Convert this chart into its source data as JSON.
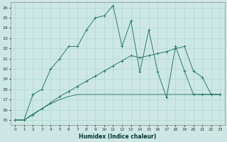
{
  "xlabel": "Humidex (Indice chaleur)",
  "bg_color": "#cde8e4",
  "line_color": "#2d7a6e",
  "grid_color": "#b0d8d2",
  "xlim": [
    -0.5,
    23.5
  ],
  "ylim": [
    14.5,
    26.5
  ],
  "xticks": [
    0,
    1,
    2,
    3,
    4,
    5,
    6,
    7,
    8,
    9,
    10,
    11,
    12,
    13,
    14,
    15,
    16,
    17,
    18,
    19,
    20,
    21,
    22,
    23
  ],
  "yticks": [
    15,
    16,
    17,
    18,
    19,
    20,
    21,
    22,
    23,
    24,
    25,
    26
  ],
  "series1_x": [
    0,
    1,
    2,
    3,
    4,
    5,
    6,
    7,
    8,
    9,
    10,
    11,
    12,
    13,
    14,
    15,
    16,
    17,
    18,
    19,
    20,
    21,
    22,
    23
  ],
  "series1_y": [
    15,
    15,
    17.5,
    18,
    20,
    21,
    22.2,
    22.2,
    23.8,
    25,
    25.2,
    26.2,
    22.2,
    24.7,
    19.7,
    23.8,
    19.7,
    17.2,
    22.2,
    19.8,
    17.5,
    17.5,
    17.5,
    17.5
  ],
  "series2_x": [
    0,
    1,
    2,
    3,
    4,
    5,
    6,
    7,
    8,
    9,
    10,
    11,
    12,
    13,
    14,
    15,
    16,
    17,
    18,
    19,
    20,
    21,
    22,
    23
  ],
  "series2_y": [
    15,
    15,
    15.6,
    16.1,
    16.6,
    17.0,
    17.3,
    17.5,
    17.5,
    17.5,
    17.5,
    17.5,
    17.5,
    17.5,
    17.5,
    17.5,
    17.5,
    17.5,
    17.5,
    17.5,
    17.5,
    17.5,
    17.5,
    17.5
  ],
  "series3_x": [
    0,
    1,
    2,
    3,
    4,
    5,
    6,
    7,
    8,
    9,
    10,
    11,
    12,
    13,
    14,
    15,
    16,
    17,
    18,
    19,
    20,
    21,
    22,
    23
  ],
  "series3_y": [
    15.0,
    15.0,
    15.5,
    16.1,
    16.7,
    17.3,
    17.8,
    18.3,
    18.8,
    19.3,
    19.8,
    20.3,
    20.8,
    21.3,
    21.1,
    21.3,
    21.5,
    21.7,
    22.0,
    22.2,
    19.8,
    19.2,
    17.5,
    17.5
  ]
}
